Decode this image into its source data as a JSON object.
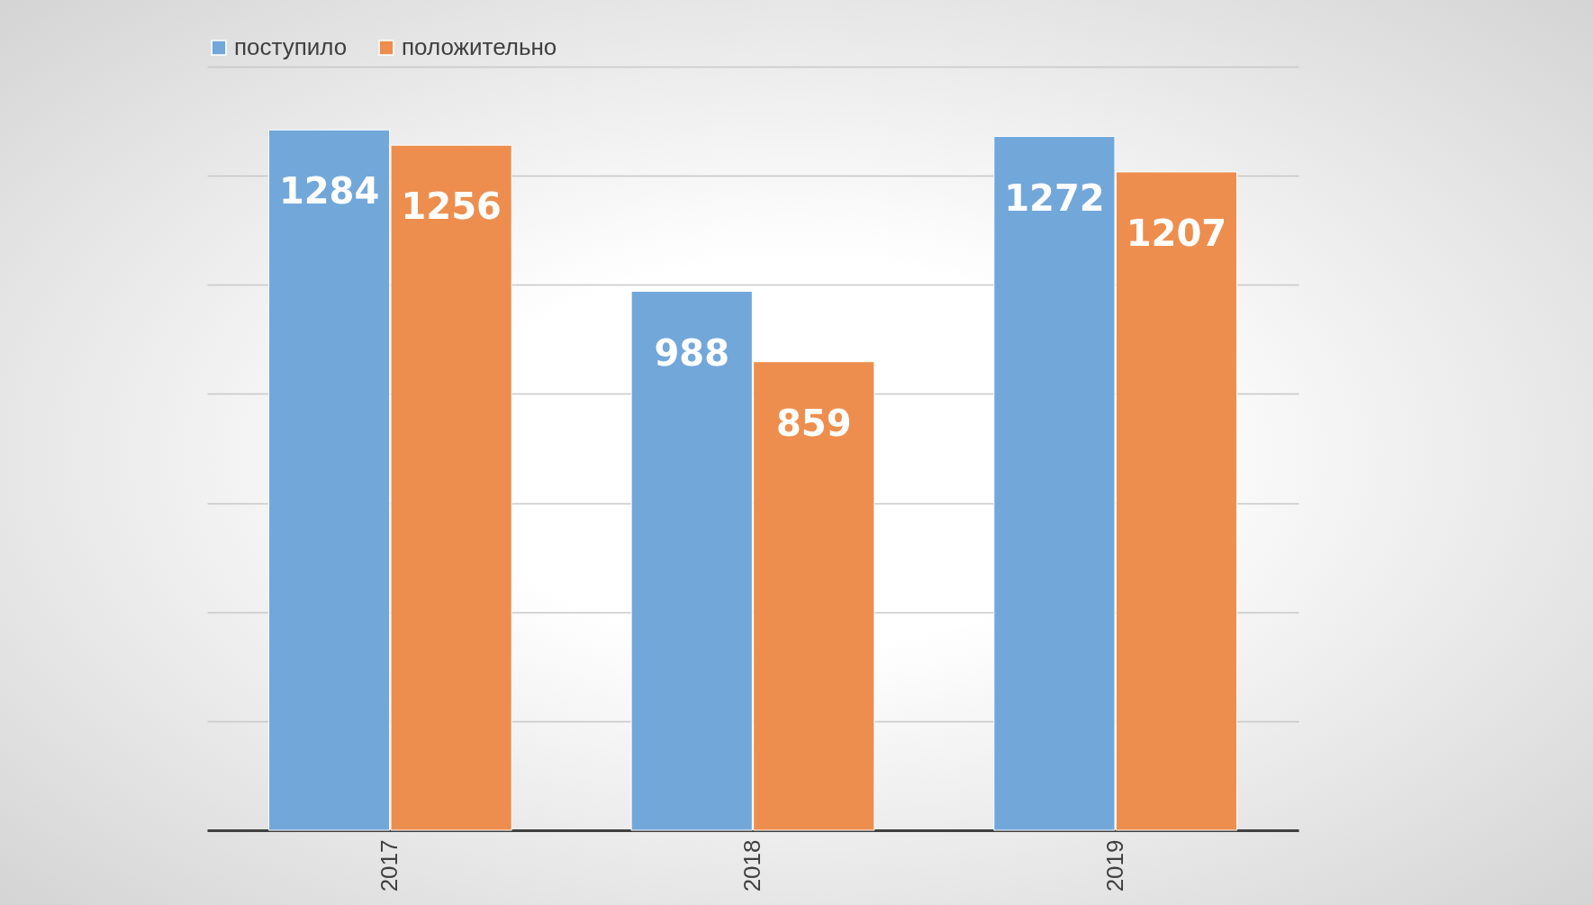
{
  "chart_data": {
    "type": "bar",
    "categories": [
      "2017",
      "2018",
      "2019"
    ],
    "series": [
      {
        "name": "поступило",
        "color": "#72a7da",
        "values": [
          1284,
          988,
          1272
        ]
      },
      {
        "name": "положительно",
        "color": "#ee8e4e",
        "values": [
          1256,
          859,
          1207
        ]
      }
    ],
    "ylim": [
      0,
      1400
    ],
    "yticks": [
      {
        "value": 0,
        "label": null
      },
      {
        "value": 200,
        "label": null
      },
      {
        "value": 400,
        "label": null
      },
      {
        "value": 600,
        "label": null
      },
      {
        "value": 800,
        "label": null
      },
      {
        "value": 1000,
        "label": null
      },
      {
        "value": 1200,
        "label": null
      },
      {
        "value": 1400,
        "label": null
      }
    ],
    "grid": "y",
    "legend": "top",
    "tick_labels": "x",
    "data_labels": true
  }
}
